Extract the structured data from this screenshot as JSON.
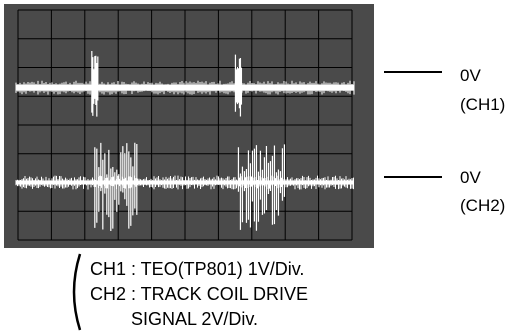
{
  "chart_data": {
    "type": "line",
    "title": "",
    "xlabel": "",
    "ylabel": "",
    "grid": true,
    "grid_divisions": {
      "x": 10,
      "y": 8
    },
    "screen_color": "#4a4a4a",
    "trace_color": "#ffffff",
    "series": [
      {
        "channel": "CH1",
        "zero_level_label": "0V",
        "channel_label": "(CH1)",
        "baseline_division": 5.3,
        "spike_positions_division": [
          2.3,
          6.6
        ]
      },
      {
        "channel": "CH2",
        "zero_level_label": "0V",
        "channel_label": "(CH2)",
        "baseline_division": 2.0,
        "burst_ranges_division": [
          [
            2.3,
            3.6
          ],
          [
            6.6,
            8.0
          ]
        ]
      }
    ],
    "legend_lines": [
      "CH1 : TEO(TP801) 1V/Div.",
      "CH2 : TRACK COIL DRIVE",
      "SIGNAL 2V/Div."
    ]
  }
}
